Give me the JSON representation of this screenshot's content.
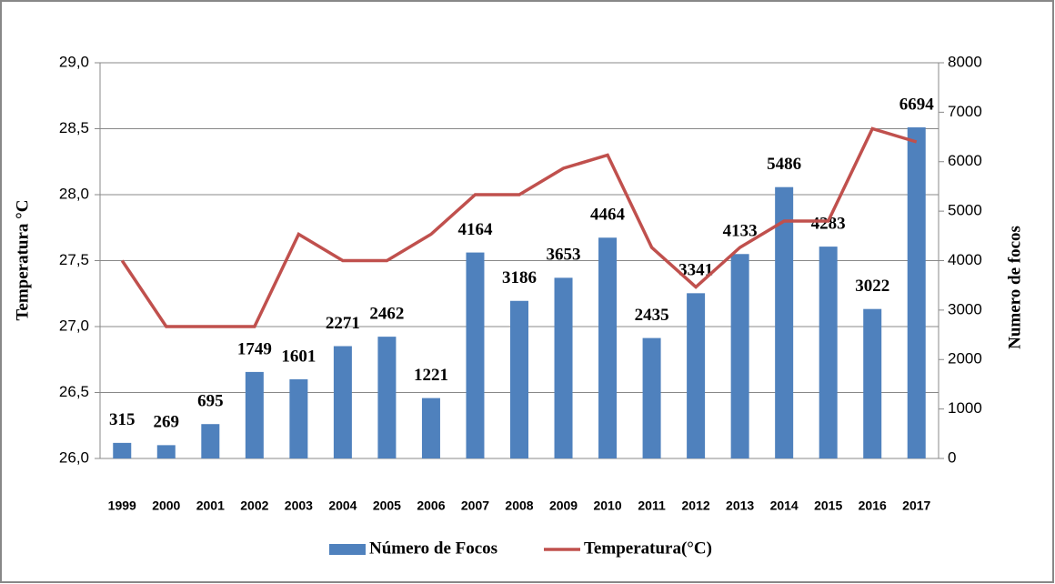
{
  "chart_data": {
    "type": "bar-line",
    "categories": [
      "1999",
      "2000",
      "2001",
      "2002",
      "2003",
      "2004",
      "2005",
      "2006",
      "2007",
      "2008",
      "2009",
      "2010",
      "2011",
      "2012",
      "2013",
      "2014",
      "2015",
      "2016",
      "2017"
    ],
    "series": [
      {
        "name": "Número de Focos",
        "type": "bar",
        "axis": "y2",
        "color": "#4f81bd",
        "values": [
          315,
          269,
          695,
          1749,
          1601,
          2271,
          2462,
          1221,
          4164,
          3186,
          3653,
          4464,
          2435,
          3341,
          4133,
          5486,
          4283,
          3022,
          6694
        ]
      },
      {
        "name": "Temperatura(°C)",
        "type": "line",
        "axis": "y",
        "color": "#c0504d",
        "values": [
          27.5,
          27.0,
          27.0,
          27.0,
          27.7,
          27.5,
          27.5,
          27.7,
          28.0,
          28.0,
          28.2,
          28.3,
          27.6,
          27.3,
          27.6,
          27.8,
          27.8,
          28.5,
          28.4
        ]
      }
    ],
    "y_label": "Temperatura °C",
    "y2_label": "Numero de focos",
    "ylim": [
      26.0,
      29.0
    ],
    "yticks": [
      {
        "value": 26.0,
        "label": "26,0"
      },
      {
        "value": 26.5,
        "label": "26,5"
      },
      {
        "value": 27.0,
        "label": "27,0"
      },
      {
        "value": 27.5,
        "label": "27,5"
      },
      {
        "value": 28.0,
        "label": "28,0"
      },
      {
        "value": 28.5,
        "label": "28,5"
      },
      {
        "value": 29.0,
        "label": "29,0"
      }
    ],
    "y2lim": [
      0,
      8000
    ],
    "y2ticks": [
      0,
      1000,
      2000,
      3000,
      4000,
      5000,
      6000,
      7000,
      8000
    ],
    "grid": true,
    "legend": "bottom"
  }
}
